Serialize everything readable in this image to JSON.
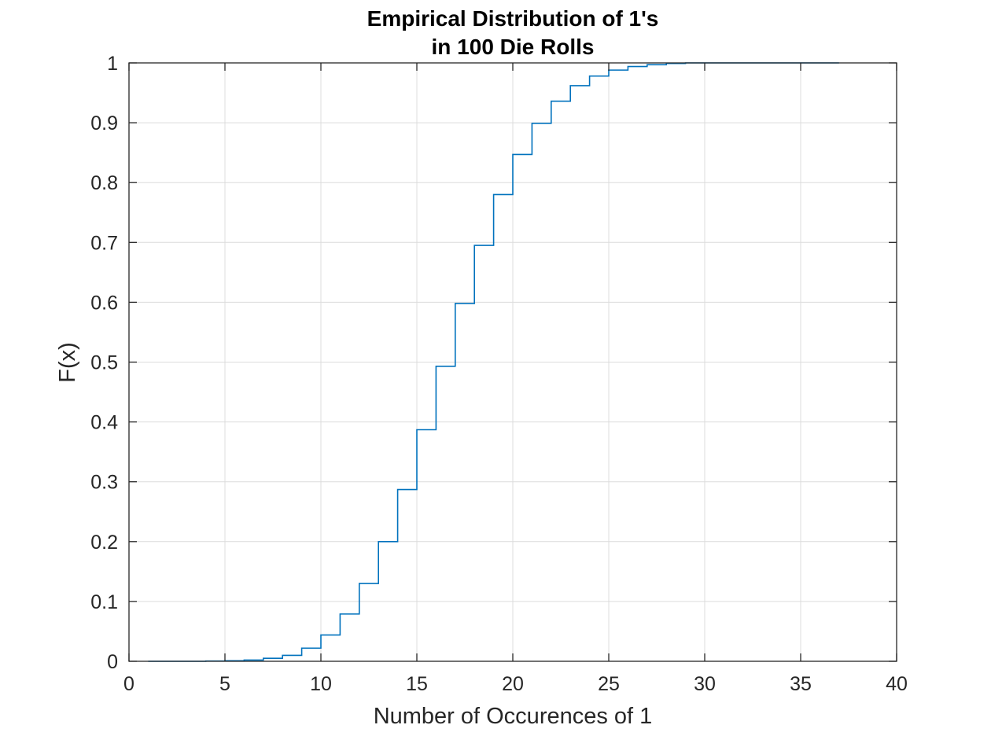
{
  "chart_data": {
    "type": "line",
    "style": "stairs",
    "title": [
      "Empirical Distribution of 1's",
      "in 100 Die Rolls"
    ],
    "xlabel": "Number of Occurences of 1",
    "ylabel": "F(x)",
    "xlim": [
      0,
      40
    ],
    "ylim": [
      0,
      1
    ],
    "grid": true,
    "xticks": [
      0,
      5,
      10,
      15,
      20,
      25,
      30,
      35,
      40
    ],
    "yticks": [
      0,
      0.1,
      0.2,
      0.3,
      0.4,
      0.5,
      0.6,
      0.7,
      0.8,
      0.9,
      1
    ],
    "ytick_labels": [
      "0",
      "0.1",
      "0.2",
      "0.3",
      "0.4",
      "0.5",
      "0.6",
      "0.7",
      "0.8",
      "0.9",
      "1"
    ],
    "color": "#0072BD",
    "series": [
      {
        "x": [
          1,
          2,
          3,
          4,
          5,
          6,
          7,
          8,
          9,
          10,
          11,
          12,
          13,
          14,
          15,
          16,
          17,
          18,
          19,
          20,
          21,
          22,
          23,
          24,
          25,
          26,
          27,
          28,
          29,
          30,
          31,
          32,
          33,
          34,
          35,
          36,
          37
        ],
        "y": [
          0,
          0,
          0,
          0.0005,
          0.001,
          0.002,
          0.005,
          0.01,
          0.022,
          0.044,
          0.079,
          0.13,
          0.2,
          0.287,
          0.387,
          0.493,
          0.598,
          0.695,
          0.78,
          0.847,
          0.899,
          0.936,
          0.962,
          0.978,
          0.988,
          0.994,
          0.997,
          0.999,
          1,
          1,
          1,
          1,
          1,
          1,
          1,
          1,
          1
        ]
      }
    ]
  }
}
